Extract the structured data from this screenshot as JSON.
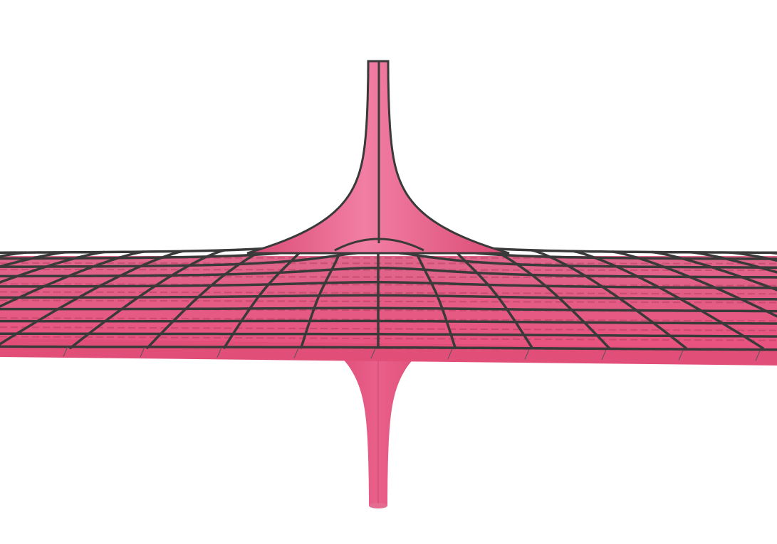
{
  "scene": {
    "subject": "surface-plot",
    "colors": {
      "background": "#ffffff",
      "surface": "#e8527e",
      "surface_light": "#f07aa0",
      "surface_dark": "#c83a64",
      "mesh": "#3a3a3a"
    },
    "icons": [
      "upper-spike-icon",
      "lower-spike-icon",
      "surface-plane-icon"
    ]
  }
}
